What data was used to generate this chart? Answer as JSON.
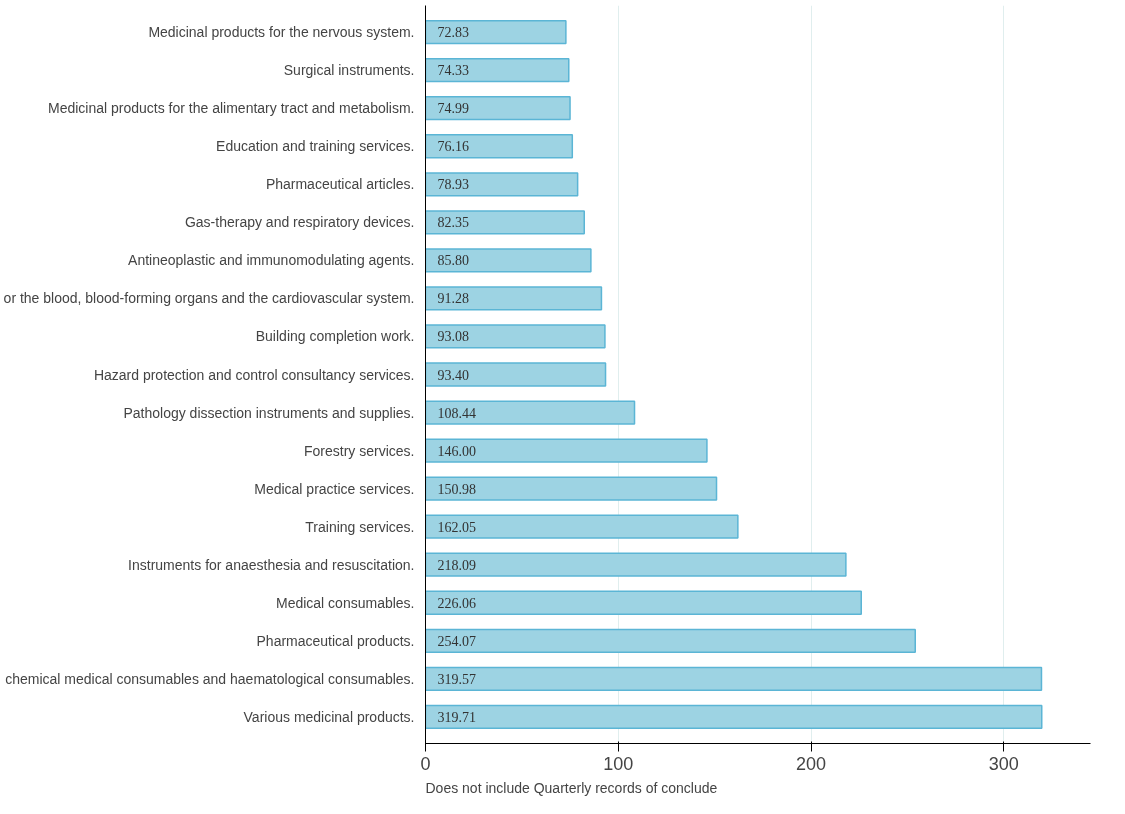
{
  "chart_data": {
    "type": "bar",
    "orientation": "horizontal",
    "categories": [
      "Medicinal products for the nervous system.",
      "Surgical instruments.",
      "Medicinal products for the alimentary tract and metabolism.",
      "Education and training services.",
      "Pharmaceutical articles.",
      "Gas-therapy and respiratory devices.",
      "Antineoplastic and immunomodulating agents.",
      "or the blood, blood-forming organs and the cardiovascular system.",
      "Building completion work.",
      "Hazard protection and control consultancy services.",
      "Pathology dissection instruments and supplies.",
      "Forestry services.",
      "Medical practice services.",
      "Training services.",
      "Instruments for anaesthesia and resuscitation.",
      "Medical consumables.",
      "Pharmaceutical products.",
      "chemical medical consumables and haematological consumables.",
      "Various medicinal products."
    ],
    "values": [
      72.83,
      74.33,
      74.99,
      76.16,
      78.93,
      82.35,
      85.8,
      91.28,
      93.08,
      93.4,
      108.44,
      146.0,
      150.98,
      162.05,
      218.09,
      226.06,
      254.07,
      319.57,
      319.71
    ],
    "value_labels": [
      "72.83",
      "74.33",
      "74.99",
      "76.16",
      "78.93",
      "82.35",
      "85.80",
      "91.28",
      "93.08",
      "93.40",
      "108.44",
      "146.00",
      "150.98",
      "162.05",
      "218.09",
      "226.06",
      "254.07",
      "319.57",
      "319.71"
    ],
    "color": "#9dd3e3",
    "xlim": [
      0,
      345
    ],
    "xticks": [
      0,
      100,
      200,
      300
    ],
    "grid": "x",
    "annotations": [
      "Does not include Quarterly records of conclude"
    ]
  }
}
